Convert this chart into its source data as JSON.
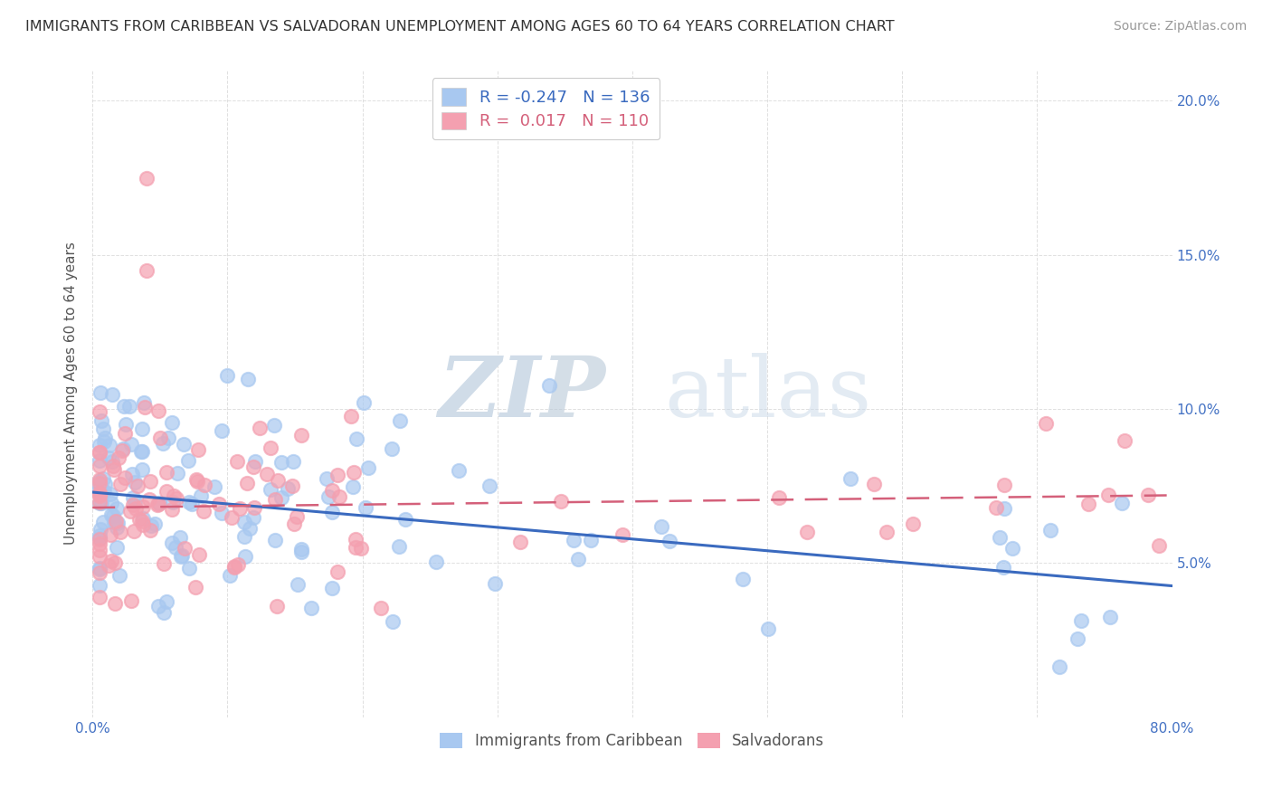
{
  "title": "IMMIGRANTS FROM CARIBBEAN VS SALVADORAN UNEMPLOYMENT AMONG AGES 60 TO 64 YEARS CORRELATION CHART",
  "source": "Source: ZipAtlas.com",
  "ylabel": "Unemployment Among Ages 60 to 64 years",
  "legend_labels": [
    "Immigrants from Caribbean",
    "Salvadorans"
  ],
  "r_caribbean": -0.247,
  "n_caribbean": 136,
  "r_salvadoran": 0.017,
  "n_salvadoran": 110,
  "xlim": [
    0.0,
    0.8
  ],
  "ylim": [
    0.0,
    0.21
  ],
  "xticks": [
    0.0,
    0.1,
    0.2,
    0.3,
    0.4,
    0.5,
    0.6,
    0.7,
    0.8
  ],
  "xticklabels": [
    "0.0%",
    "",
    "",
    "",
    "",
    "",
    "",
    "",
    "80.0%"
  ],
  "yticks": [
    0.0,
    0.05,
    0.1,
    0.15,
    0.2
  ],
  "yticklabels_right": [
    "",
    "5.0%",
    "10.0%",
    "15.0%",
    "20.0%"
  ],
  "color_caribbean": "#a8c8f0",
  "color_salvadoran": "#f4a0b0",
  "trend_color_caribbean": "#3a6abf",
  "trend_color_salvadoran": "#d4607a",
  "background_color": "#ffffff",
  "grid_color": "#d8d8d8",
  "watermark_color": "#d0dce8",
  "title_color": "#333333",
  "axis_color": "#4472c4",
  "ylabel_color": "#555555"
}
